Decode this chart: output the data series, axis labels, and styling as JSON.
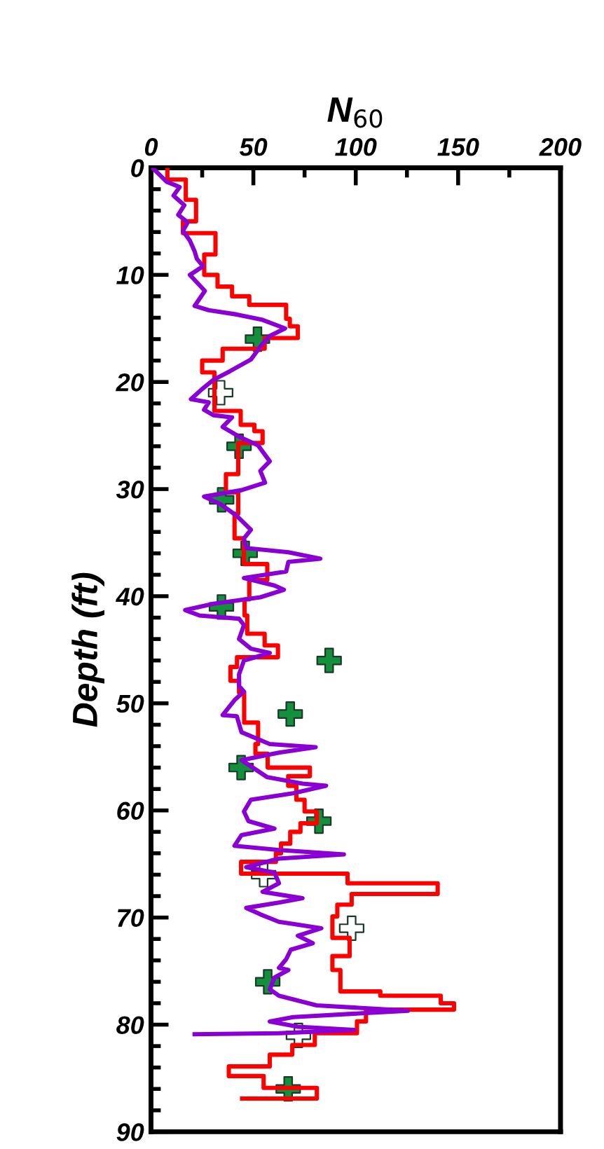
{
  "chart_data": {
    "type": "line",
    "xlabel": "N$_{60}$",
    "ylabel": "Depth (ft)",
    "xlim": [
      0,
      200
    ],
    "ylim": [
      90,
      0
    ],
    "xticks": [
      0,
      {
        "value": 25,
        "label": null
      },
      50,
      {
        "value": 75,
        "label": null
      },
      100,
      {
        "value": 125,
        "label": null
      },
      150,
      {
        "value": 175,
        "label": null
      },
      200
    ],
    "yticks": [
      0,
      {
        "value": 2,
        "label": null
      },
      {
        "value": 4,
        "label": null
      },
      {
        "value": 6,
        "label": null
      },
      {
        "value": 8,
        "label": null
      },
      10,
      {
        "value": 12,
        "label": null
      },
      {
        "value": 14,
        "label": null
      },
      {
        "value": 16,
        "label": null
      },
      {
        "value": 18,
        "label": null
      },
      20,
      {
        "value": 22,
        "label": null
      },
      {
        "value": 24,
        "label": null
      },
      {
        "value": 26,
        "label": null
      },
      {
        "value": 28,
        "label": null
      },
      30,
      {
        "value": 32,
        "label": null
      },
      {
        "value": 34,
        "label": null
      },
      {
        "value": 36,
        "label": null
      },
      {
        "value": 38,
        "label": null
      },
      40,
      {
        "value": 42,
        "label": null
      },
      {
        "value": 44,
        "label": null
      },
      {
        "value": 46,
        "label": null
      },
      {
        "value": 48,
        "label": null
      },
      50,
      {
        "value": 52,
        "label": null
      },
      {
        "value": 54,
        "label": null
      },
      {
        "value": 56,
        "label": null
      },
      {
        "value": 58,
        "label": null
      },
      60,
      {
        "value": 62,
        "label": null
      },
      {
        "value": 64,
        "label": null
      },
      {
        "value": 66,
        "label": null
      },
      {
        "value": 68,
        "label": null
      },
      70,
      {
        "value": 72,
        "label": null
      },
      {
        "value": 74,
        "label": null
      },
      {
        "value": 76,
        "label": null
      },
      {
        "value": 78,
        "label": null
      },
      80,
      {
        "value": 82,
        "label": null
      },
      {
        "value": 84,
        "label": null
      },
      {
        "value": 86,
        "label": null
      },
      {
        "value": 88,
        "label": null
      },
      90
    ],
    "grid": false,
    "series": [
      {
        "color": "#ff0000",
        "marker": "none",
        "x": [
          8,
          8,
          17,
          17,
          22,
          22,
          15.6,
          15.6,
          31.5,
          31.5,
          26,
          26,
          32.5,
          32.5,
          39.6,
          39.6,
          48,
          48,
          66,
          66,
          67.8,
          67.8,
          71.7,
          71.7,
          55.5,
          55.5,
          35,
          35,
          25,
          25,
          31,
          31,
          43.8,
          43.8,
          50.5,
          50.5,
          54.5,
          54.5,
          42.6,
          42.6,
          36.6,
          36.6,
          42.6,
          42.6,
          40.8,
          40.8,
          45.4,
          45.4,
          56.8,
          56.8,
          48,
          48,
          45.7,
          45.7,
          47,
          47,
          55.5,
          55.5,
          62,
          62,
          42,
          42,
          38.8,
          38.8,
          43,
          43,
          45.5,
          45.5,
          52.3,
          52.3,
          51,
          51,
          57,
          57,
          77.6,
          77.6,
          67,
          67,
          71,
          71,
          75,
          75,
          81,
          81,
          73,
          73,
          68,
          68,
          63.5,
          63.5,
          61,
          61,
          44,
          44,
          96,
          96,
          140,
          140,
          98,
          98,
          91,
          91,
          88.6,
          88.6,
          97,
          97,
          88.6,
          88.6,
          92.5,
          92.5,
          112,
          112,
          141.5,
          141.5,
          148,
          148,
          105,
          105,
          100.6,
          100.6,
          80,
          80,
          69,
          69,
          58,
          58,
          38,
          38,
          55,
          55,
          81,
          81,
          44.5
        ],
        "values": [
          0,
          1.1,
          1.1,
          3,
          3,
          5,
          5,
          6.1,
          6.1,
          8.1,
          8.1,
          10,
          10,
          11.1,
          11.1,
          12,
          12,
          12.8,
          12.8,
          14.1,
          14.1,
          14.8,
          14.8,
          15.9,
          15.9,
          16.9,
          16.9,
          18,
          18,
          19.1,
          19.1,
          22.7,
          22.7,
          24,
          24,
          24.6,
          24.6,
          25.7,
          25.7,
          28.6,
          28.6,
          30.3,
          30.3,
          32.3,
          32.3,
          34.6,
          34.6,
          37,
          37,
          38.5,
          38.5,
          40.3,
          40.3,
          41.8,
          41.8,
          43.5,
          43.5,
          44.6,
          44.6,
          45.7,
          45.7,
          46.6,
          46.6,
          47.9,
          47.9,
          49,
          49,
          51.8,
          51.8,
          53.8,
          53.8,
          54.7,
          54.7,
          56,
          56,
          56.8,
          56.8,
          57.7,
          57.7,
          59,
          59,
          60.1,
          60.1,
          61.2,
          61.2,
          62,
          62,
          63.1,
          63.1,
          64,
          64,
          64.8,
          64.8,
          65.9,
          65.9,
          66.8,
          66.8,
          67.8,
          67.8,
          68.8,
          68.8,
          69.9,
          69.9,
          71.9,
          71.9,
          73.6,
          73.6,
          74.9,
          74.9,
          76.9,
          76.9,
          77.3,
          77.3,
          78,
          78,
          78.6,
          78.6,
          79.7,
          79.7,
          80.8,
          80.8,
          81.9,
          81.9,
          82.8,
          82.8,
          83.9,
          83.9,
          84.8,
          84.8,
          85.9,
          85.9,
          86.9,
          86.9
        ]
      },
      {
        "color": "#8a00d4",
        "marker": "none",
        "x": [
          0.7,
          7.6,
          14,
          11,
          16.3,
          13.3,
          17.9,
          15.6,
          19,
          21.3,
          22.4,
          25.4,
          19,
          22.4,
          26.3,
          21.3,
          28.2,
          41.9,
          54.5,
          65.5,
          58,
          53.8,
          48.8,
          38.5,
          30.5,
          24.7,
          19.5,
          28.2,
          25.9,
          30.5,
          39.6,
          35,
          43,
          52.2,
          58,
          53.4,
          55.7,
          44.2,
          25.9,
          33.9,
          41.9,
          48.8,
          45.4,
          46.5,
          67.1,
          82.7,
          67.1,
          66,
          45.4,
          60.3,
          64.9,
          53.4,
          30.5,
          16.7,
          23.7,
          43,
          45.4,
          43,
          48.8,
          58,
          45.4,
          43,
          43,
          45.4,
          40.8,
          35,
          41.9,
          44.2,
          58,
          80.4,
          62.5,
          44.2,
          56.8,
          74,
          85.5,
          69.4,
          48.8,
          45.4,
          47.6,
          60.3,
          44.2,
          40.8,
          62.5,
          94.2,
          62.5,
          46.5,
          60.3,
          62.5,
          54.5,
          74,
          62.5,
          46.5,
          53.4,
          62.5,
          69.4,
          83.2,
          71.7,
          79,
          68.3,
          66,
          62.5,
          67.1,
          60.3,
          58,
          62.5,
          80.9,
          125.5,
          69.4,
          58,
          71.7,
          99.2,
          62.5,
          21.3
        ],
        "values": [
          0,
          1.3,
          1.8,
          2.6,
          3.5,
          4.4,
          5.1,
          5.9,
          6.8,
          7.8,
          8.5,
          9.2,
          10,
          10.7,
          11.5,
          12.9,
          13.3,
          13.7,
          14.2,
          15,
          15.7,
          16.6,
          17.9,
          19,
          19.8,
          20.7,
          21.6,
          21.9,
          22.6,
          23.1,
          23.3,
          24.2,
          25.1,
          25.9,
          27.4,
          28.3,
          29.4,
          30.1,
          30.7,
          31.4,
          32.5,
          33.8,
          34.6,
          35.5,
          35.9,
          36.5,
          36.8,
          37.7,
          38.3,
          39,
          39.4,
          40.1,
          40.7,
          41.3,
          41.8,
          42.1,
          42.7,
          44,
          44.9,
          45.3,
          46,
          47.3,
          48.4,
          48.9,
          49.7,
          51.1,
          51.2,
          52.7,
          53.8,
          54.1,
          54.6,
          55.3,
          56.9,
          57.5,
          57.7,
          58.4,
          59,
          60.1,
          61,
          61.7,
          62.3,
          63.3,
          63.7,
          64.1,
          64.5,
          65.3,
          65.8,
          66.8,
          67.6,
          68.2,
          68.6,
          69.1,
          69.7,
          70.4,
          70.6,
          71,
          71.7,
          72.4,
          73,
          73.9,
          74.7,
          74.9,
          75.6,
          76.7,
          77.3,
          78.2,
          78.7,
          79.3,
          79.7,
          80.2,
          80.5,
          80.8,
          80.9
        ]
      },
      {
        "type": "scatter",
        "color": "#14903c",
        "marker": "cross",
        "x": [
          52,
          43,
          34.5,
          46,
          34.4,
          87,
          68,
          44,
          82,
          57,
          67
        ],
        "values": [
          16,
          26,
          31,
          36,
          41,
          46,
          51,
          56,
          61,
          76,
          86
        ]
      },
      {
        "type": "scatter",
        "color": "#ffffff",
        "marker": "cross",
        "x": [
          34,
          55,
          98,
          72
        ],
        "values": [
          21,
          66,
          71,
          81
        ]
      }
    ]
  }
}
